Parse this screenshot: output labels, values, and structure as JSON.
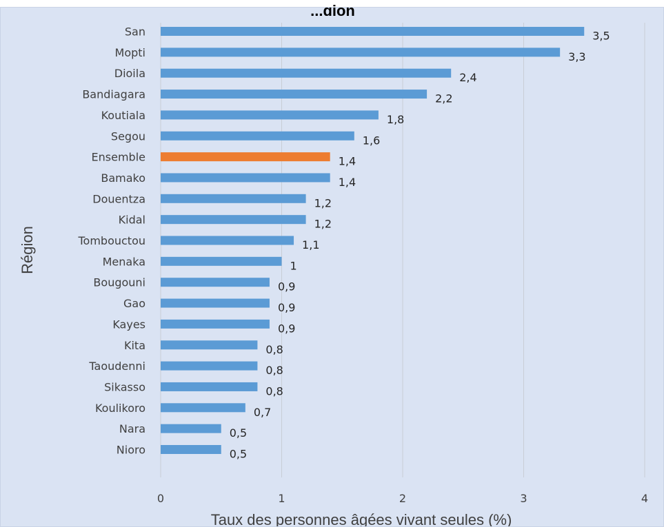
{
  "chart_data": {
    "type": "bar",
    "orientation": "horizontal",
    "title": "...gion",
    "xlabel": "Taux des personnes âgées vivant seules (%)",
    "ylabel": "Région",
    "xlim": [
      0,
      4
    ],
    "xticks": [
      "0",
      "1",
      "2",
      "3",
      "4"
    ],
    "grid": "vertical",
    "categories": [
      "San",
      "Mopti",
      "Dioila",
      "Bandiagara",
      "Koutiala",
      "Segou",
      "Ensemble",
      "Bamako",
      "Douentza",
      "Kidal",
      "Tombouctou",
      "Menaka",
      "Bougouni",
      "Gao",
      "Kayes",
      "Kita",
      "Taoudenni",
      "Sikasso",
      "Koulikoro",
      "Nara",
      "Nioro"
    ],
    "values": [
      3.5,
      3.3,
      2.4,
      2.2,
      1.8,
      1.6,
      1.4,
      1.4,
      1.2,
      1.2,
      1.1,
      1,
      0.9,
      0.9,
      0.9,
      0.8,
      0.8,
      0.8,
      0.7,
      0.5,
      0.5
    ],
    "value_labels": [
      "3,5",
      "3,3",
      "2,4",
      "2,2",
      "1,8",
      "1,6",
      "1,4",
      "1,4",
      "1,2",
      "1,2",
      "1,1",
      "1",
      "0,9",
      "0,9",
      "0,9",
      "0,8",
      "0,8",
      "0,8",
      "0,7",
      "0,5",
      "0,5"
    ],
    "highlight_category": "Ensemble",
    "colors": {
      "default": "#5b9bd5",
      "highlight": "#ed7d31",
      "background": "#dae3f3",
      "grid": "#c8cdd6"
    }
  }
}
